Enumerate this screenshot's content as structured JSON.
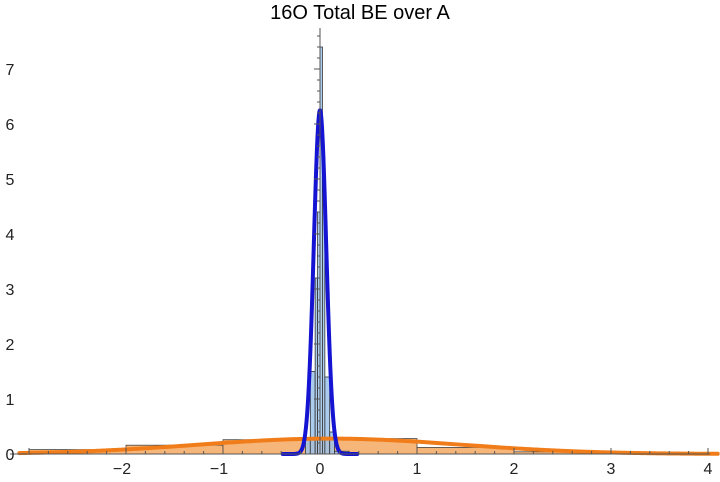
{
  "chart_data": {
    "type": "histogram",
    "title": "16O Total BE over A",
    "xlabel": "",
    "ylabel": "",
    "xlim": [
      -3.1,
      4.1
    ],
    "ylim": [
      0,
      7.6
    ],
    "x_ticks": [
      -2,
      -1,
      0,
      1,
      2,
      3,
      4
    ],
    "x_tick_labels": [
      "−2",
      "−1",
      "0",
      "1",
      "2",
      "3",
      "4"
    ],
    "y_ticks": [
      0,
      1,
      2,
      3,
      4,
      5,
      6,
      7
    ],
    "y_tick_labels": [
      "0",
      "1",
      "2",
      "3",
      "4",
      "5",
      "6",
      "7"
    ],
    "grid": false,
    "series": [
      {
        "kind": "histogram",
        "fill_color": "#f7b679",
        "edge_color": "#444444",
        "bins": [
          {
            "x0": -3,
            "x1": -2,
            "value": 0.08
          },
          {
            "x0": -2,
            "x1": -1,
            "value": 0.16
          },
          {
            "x0": -1,
            "x1": 0,
            "value": 0.26
          },
          {
            "x0": 0,
            "x1": 1,
            "value": 0.28
          },
          {
            "x0": 1,
            "x1": 2,
            "value": 0.12
          },
          {
            "x0": 2,
            "x1": 3,
            "value": 0.04
          },
          {
            "x0": 3,
            "x1": 4,
            "value": 0.02
          }
        ]
      },
      {
        "kind": "histogram",
        "fill_color": "#9cc3ea",
        "edge_color": "#333333",
        "bins": [
          {
            "x0": -0.15,
            "x1": -0.1,
            "value": 0.3
          },
          {
            "x0": -0.1,
            "x1": -0.05,
            "value": 1.5
          },
          {
            "x0": -0.05,
            "x1": -0.025,
            "value": 3.2
          },
          {
            "x0": -0.025,
            "x1": 0,
            "value": 4.4
          },
          {
            "x0": 0,
            "x1": 0.025,
            "value": 7.4
          },
          {
            "x0": 0.025,
            "x1": 0.05,
            "value": 5.4
          },
          {
            "x0": 0.05,
            "x1": 0.1,
            "value": 1.4
          },
          {
            "x0": 0.1,
            "x1": 0.15,
            "value": 0.4
          },
          {
            "x0": 0.15,
            "x1": 0.3,
            "value": 0.05
          }
        ]
      },
      {
        "kind": "curve",
        "color": "#f07d1a",
        "distribution": "normal",
        "mean": 0.1,
        "sd": 1.35,
        "peak": 0.28
      },
      {
        "kind": "curve",
        "color": "#1414d2",
        "distribution": "normal",
        "mean": 0.0,
        "sd": 0.064,
        "peak": 6.25
      }
    ]
  }
}
